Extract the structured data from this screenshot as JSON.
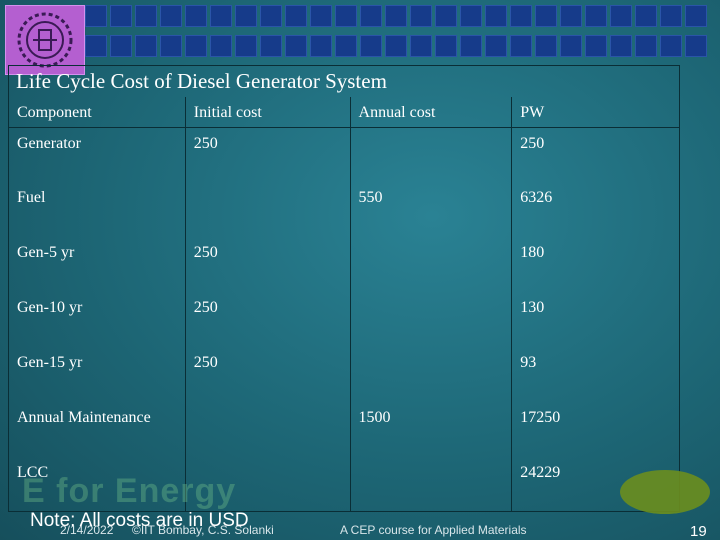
{
  "title": "Life Cycle Cost of Diesel Generator System",
  "table": {
    "headers": [
      "Component",
      "Initial cost",
      "Annual cost",
      "PW"
    ],
    "rows": [
      [
        "Generator",
        "250",
        "",
        "250"
      ],
      [
        "Fuel",
        "",
        "550",
        "6326"
      ],
      [
        "Gen-5 yr",
        "250",
        "",
        "180"
      ],
      [
        "Gen-10 yr",
        "250",
        "",
        "130"
      ],
      [
        "Gen-15 yr",
        "250",
        "",
        "93"
      ],
      [
        "Annual Maintenance",
        "",
        "1500",
        "17250"
      ],
      [
        "LCC",
        "",
        "",
        "24229"
      ]
    ]
  },
  "note": "Note: All costs are in USD",
  "footer": {
    "date": "2/14/2022",
    "credit": "©IIT Bombay, C.S. Solanki",
    "course": "A CEP course for Applied Materials",
    "page": "19",
    "watermark": "E for Energy"
  },
  "colors": {
    "background": "#1e6b7a",
    "tiles": "#163b8a",
    "logo": "#b45fd0",
    "accent_blob": "#6c8e1e"
  }
}
